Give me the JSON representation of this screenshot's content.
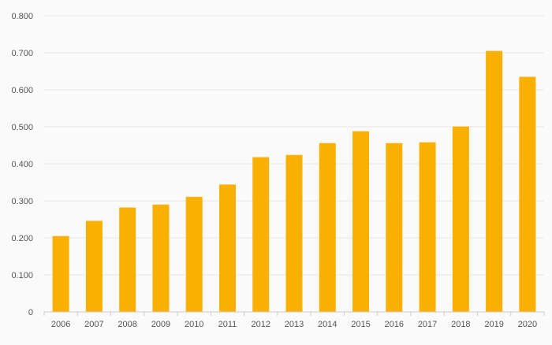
{
  "chart_data": {
    "type": "bar",
    "categories": [
      "2006",
      "2007",
      "2008",
      "2009",
      "2010",
      "2011",
      "2012",
      "2013",
      "2014",
      "2015",
      "2016",
      "2017",
      "2018",
      "2019",
      "2020"
    ],
    "values": [
      0.205,
      0.246,
      0.282,
      0.29,
      0.311,
      0.344,
      0.418,
      0.424,
      0.456,
      0.488,
      0.456,
      0.458,
      0.501,
      0.705,
      0.635
    ],
    "title": "",
    "xlabel": "",
    "ylabel": "",
    "ylim": [
      0,
      0.8
    ],
    "yticks": [
      "0",
      "0.100",
      "0.200",
      "0.300",
      "0.400",
      "0.500",
      "0.600",
      "0.700",
      "0.800"
    ],
    "grid": true,
    "legend": "none",
    "bar_color": "#f9b000",
    "grid_color": "#e6e6e6",
    "axis_color": "#cccccc"
  }
}
